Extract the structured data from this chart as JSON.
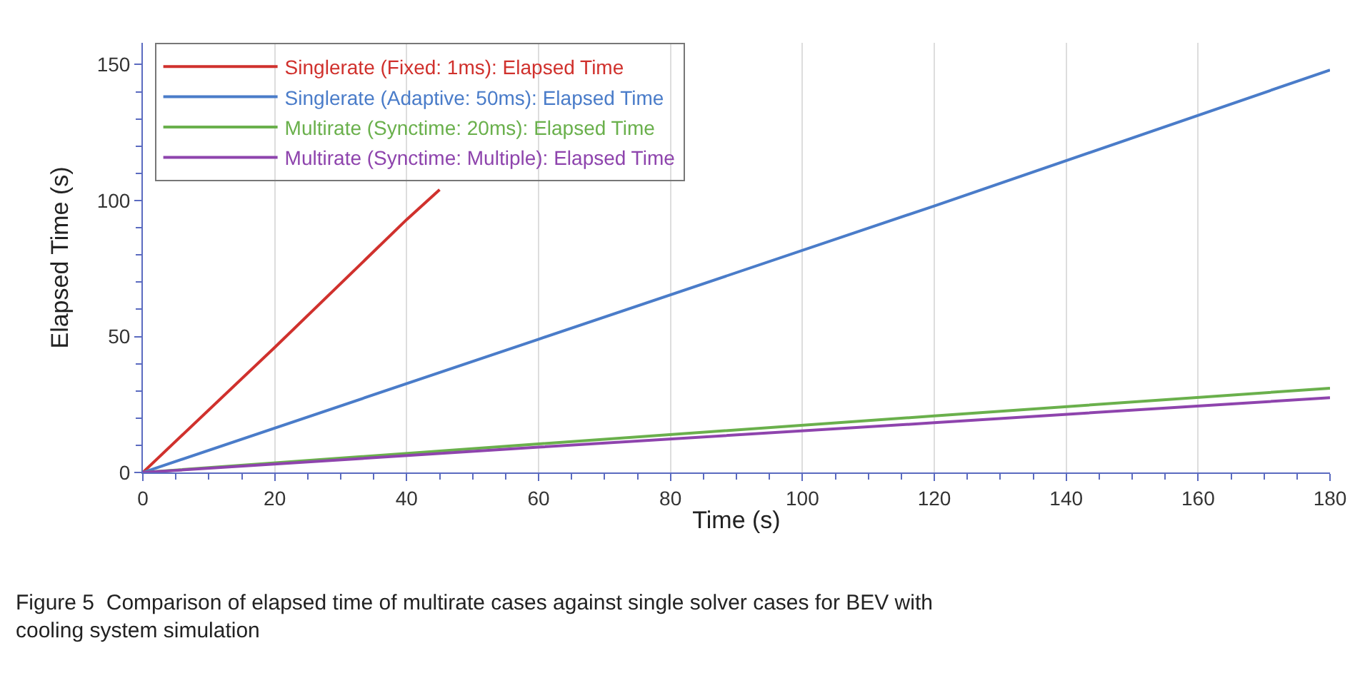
{
  "chart_data": {
    "type": "line",
    "xlabel": "Time (s)",
    "ylabel": "Elapsed Time (s)",
    "xlim": [
      0,
      180
    ],
    "xticks": [
      0,
      20,
      40,
      60,
      80,
      100,
      120,
      140,
      160,
      180
    ],
    "ylim": [
      0,
      158
    ],
    "yticks": [
      0,
      50,
      100,
      150
    ],
    "grid": "x",
    "legend": "top left",
    "marker": "none",
    "line_style": "solid",
    "series": [
      {
        "name": "Singlerate (Fixed: 1ms): Elapsed Time",
        "color": "#d0312d",
        "x": [
          0,
          20,
          40,
          45
        ],
        "values": [
          0,
          46,
          93,
          104
        ]
      },
      {
        "name": "Singlerate (Adaptive: 50ms): Elapsed Time",
        "color": "#4a7cc9",
        "x": [
          0,
          60,
          120,
          180
        ],
        "values": [
          0,
          49,
          98,
          148
        ]
      },
      {
        "name": "Multirate (Synctime: 20ms): Elapsed Time",
        "color": "#6ab04c",
        "x": [
          0,
          60,
          120,
          180
        ],
        "values": [
          0,
          10.5,
          20.8,
          31
        ]
      },
      {
        "name": "Multirate (Synctime: Multiple): Elapsed Time",
        "color": "#8e44ad",
        "x": [
          0,
          60,
          120,
          180
        ],
        "values": [
          0,
          9.3,
          18.3,
          27.5
        ]
      }
    ],
    "annotations": [
      "Figure 5  Comparison of elapsed time of multirate cases against single solver cases for BEV with cooling system simulation"
    ]
  }
}
